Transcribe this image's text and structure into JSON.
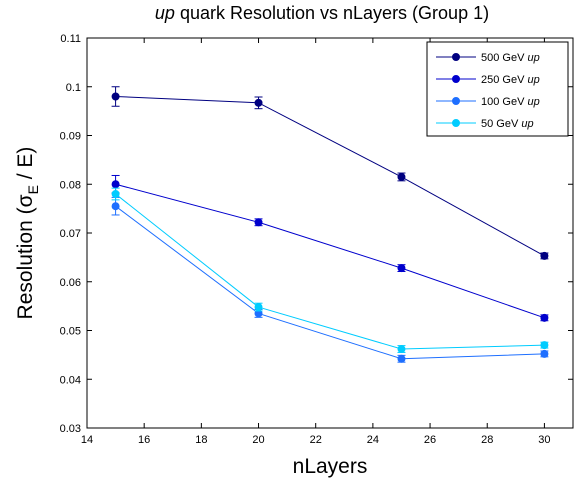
{
  "chart_data": {
    "type": "line",
    "title_italic": "up",
    "title_rest": " quark Resolution vs nLayers (Group 1)",
    "xlabel": "nLayers",
    "ylabel_prefix": "Resolution (σ",
    "ylabel_sub": "E",
    "ylabel_suffix": " / E)",
    "xlim": [
      14,
      31
    ],
    "ylim": [
      0.03,
      0.11
    ],
    "xticks": [
      14,
      16,
      18,
      20,
      22,
      24,
      26,
      28,
      30
    ],
    "yticks": [
      0.03,
      0.04,
      0.05,
      0.06,
      0.07,
      0.08,
      0.09,
      0.1,
      0.11
    ],
    "xtick_labels": [
      "14",
      "16",
      "18",
      "20",
      "22",
      "24",
      "26",
      "28",
      "30"
    ],
    "ytick_labels": [
      "0.03",
      "0.04",
      "0.05",
      "0.06",
      "0.07",
      "0.08",
      "0.09",
      "0.1",
      "0.11"
    ],
    "grid": false,
    "legend_position": "top-right",
    "x": [
      15,
      20,
      25,
      30
    ],
    "series": [
      {
        "name": "500 GeV ",
        "name_italic": "up",
        "color": "#000080",
        "values": [
          0.098,
          0.0967,
          0.0815,
          0.0653
        ],
        "errors": [
          0.002,
          0.0012,
          0.0008,
          0.0006
        ]
      },
      {
        "name": "250 GeV ",
        "name_italic": "up",
        "color": "#0000cd",
        "values": [
          0.08,
          0.0722,
          0.0628,
          0.0526
        ],
        "errors": [
          0.0018,
          0.0007,
          0.0007,
          0.0006
        ]
      },
      {
        "name": "100 GeV ",
        "name_italic": "up",
        "color": "#1e6fff",
        "values": [
          0.0755,
          0.0535,
          0.0442,
          0.0452
        ],
        "errors": [
          0.0018,
          0.0008,
          0.0007,
          0.0006
        ]
      },
      {
        "name": "50 GeV ",
        "name_italic": "up",
        "color": "#00ccff",
        "values": [
          0.078,
          0.0548,
          0.0462,
          0.047
        ],
        "errors": [
          0.0012,
          0.0008,
          0.0007,
          0.0006
        ]
      }
    ]
  }
}
